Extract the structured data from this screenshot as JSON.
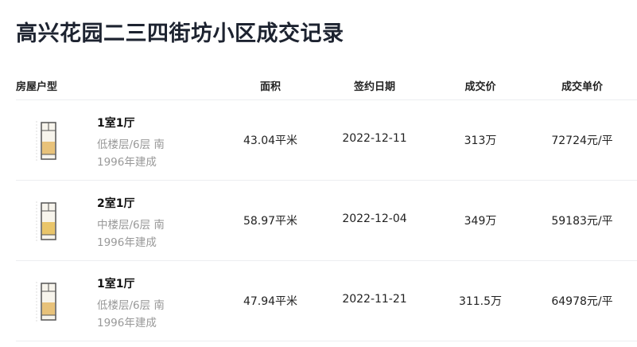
{
  "title": "高兴花园二三四街坊小区成交记录",
  "headers": {
    "layout": "房屋户型",
    "area": "面积",
    "date": "签约日期",
    "price": "成交价",
    "unit_price": "成交单价"
  },
  "rows": [
    {
      "rooms": "1室1厅",
      "floor": "低楼层/6层 南",
      "built": "1996年建成",
      "area": "43.04平米",
      "date": "2022-12-11",
      "price": "313万",
      "unit_price": "72724元/平"
    },
    {
      "rooms": "2室1厅",
      "floor": "中楼层/6层 南",
      "built": "1996年建成",
      "area": "58.97平米",
      "date": "2022-12-04",
      "price": "349万",
      "unit_price": "59183元/平"
    },
    {
      "rooms": "1室1厅",
      "floor": "低楼层/6层 南",
      "built": "1996年建成",
      "area": "47.94平米",
      "date": "2022-11-21",
      "price": "311.5万",
      "unit_price": "64978元/平"
    }
  ]
}
